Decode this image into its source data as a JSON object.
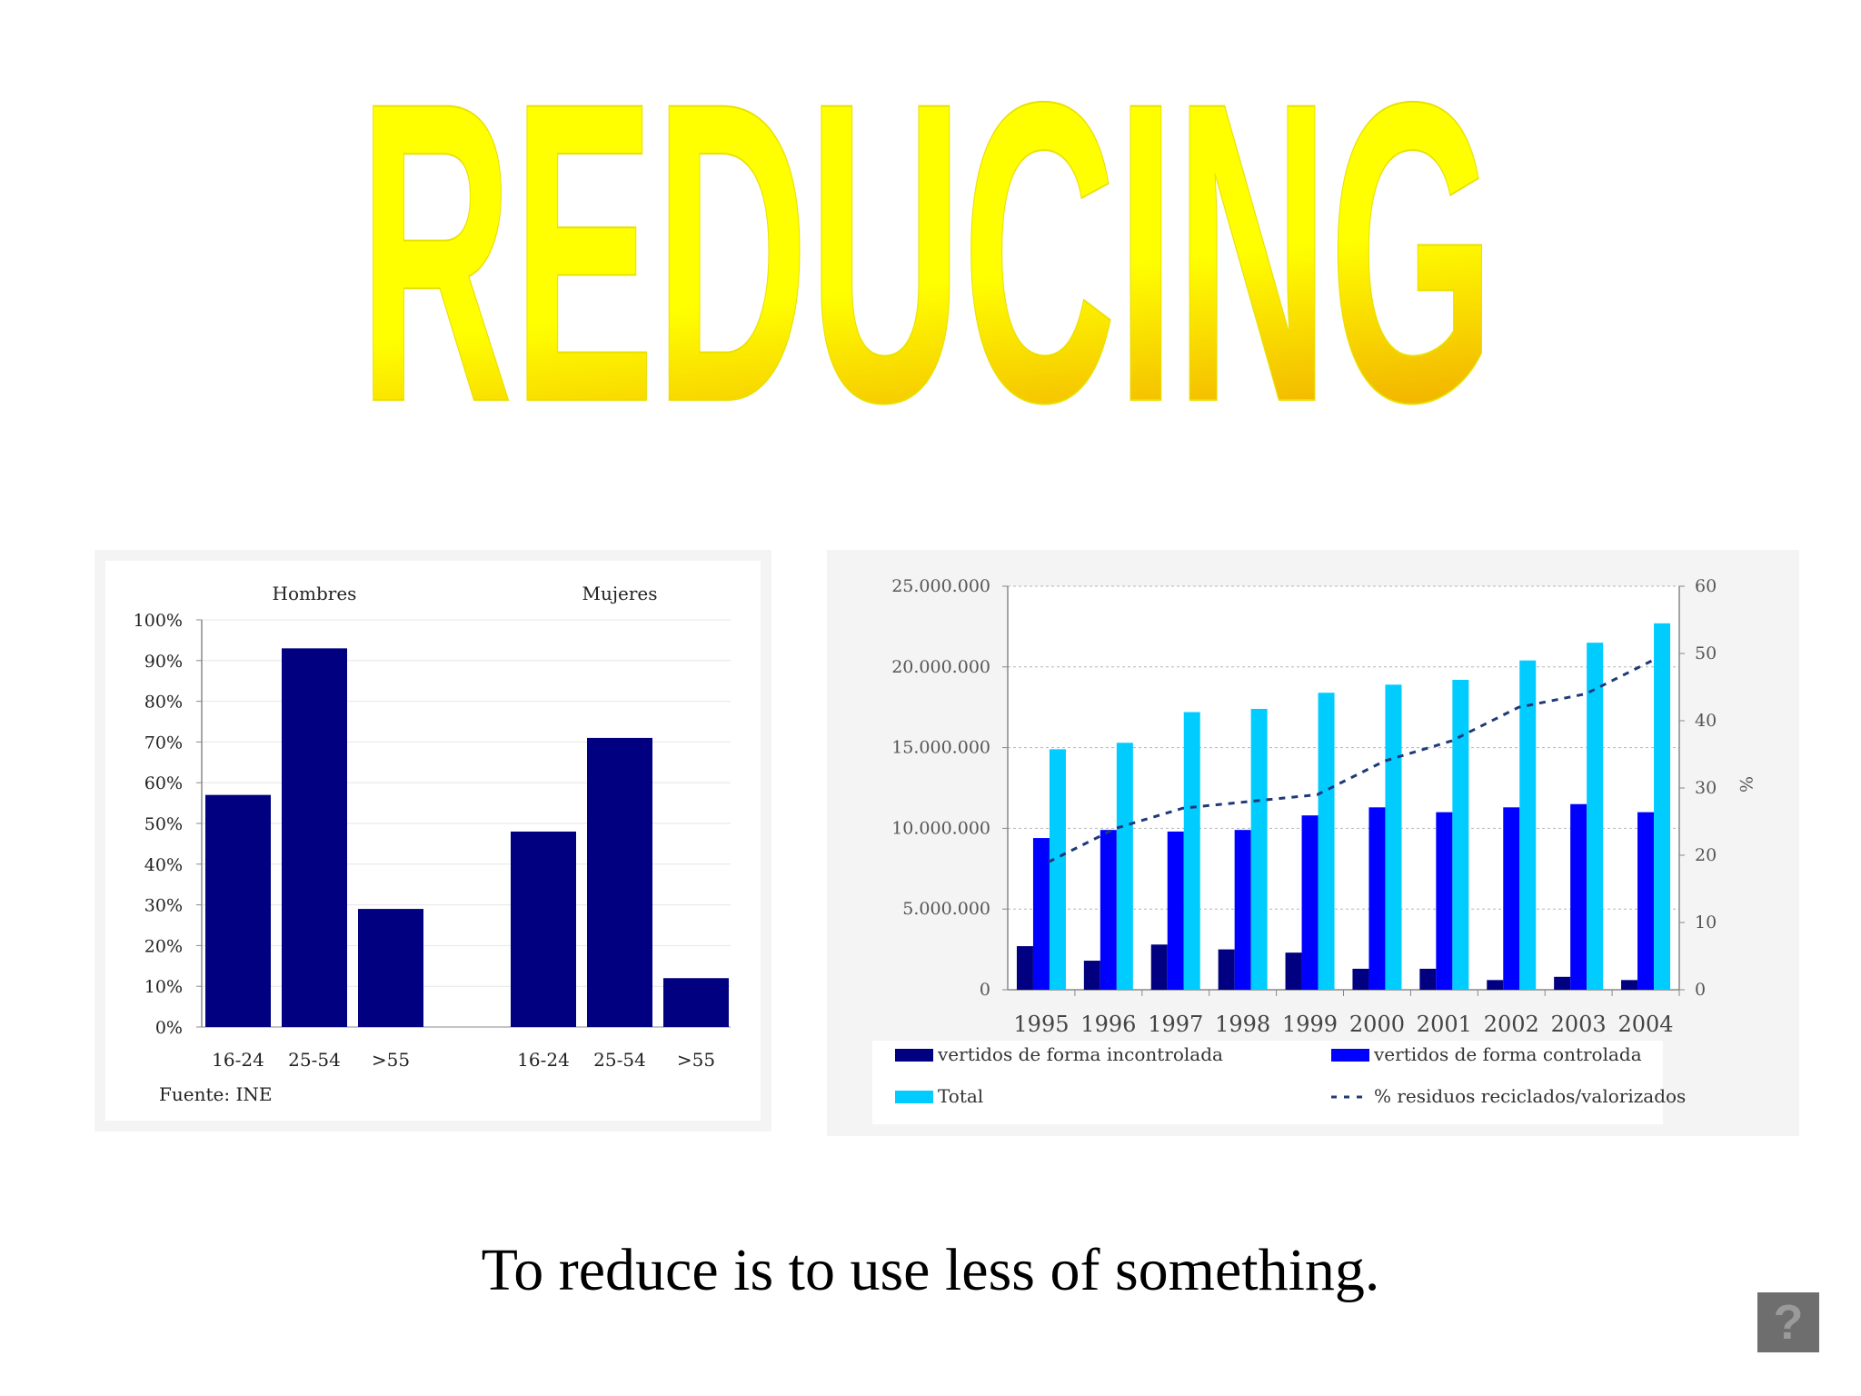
{
  "slide": {
    "title": "REDUCING",
    "caption": "To reduce is to use less of something.",
    "help_button": "?"
  },
  "colors": {
    "title_fill": "#ffff00",
    "title_shade": "#f2b300",
    "navy": "#000080",
    "blue": "#0000ff",
    "cyan": "#00ccff",
    "dashed_line": "#1f3a78"
  },
  "chart_data": [
    {
      "type": "bar",
      "groups": [
        {
          "name": "Hombres",
          "categories": [
            "16-24",
            "25-54",
            ">55"
          ],
          "values": [
            57,
            93,
            29
          ]
        },
        {
          "name": "Mujeres",
          "categories": [
            "16-24",
            "25-54",
            ">55"
          ],
          "values": [
            48,
            71,
            12
          ]
        }
      ],
      "yticks": [
        "0%",
        "10%",
        "20%",
        "30%",
        "40%",
        "50%",
        "60%",
        "70%",
        "80%",
        "90%",
        "100%"
      ],
      "ylim": [
        0,
        100
      ],
      "source": "Fuente: INE",
      "grid": true,
      "legend": "none"
    },
    {
      "type": "bar",
      "categories": [
        "1995",
        "1996",
        "1997",
        "1998",
        "1999",
        "2000",
        "2001",
        "2002",
        "2003",
        "2004"
      ],
      "series": [
        {
          "name": "vertidos de forma incontrolada",
          "values": [
            2700000,
            1800000,
            2800000,
            2500000,
            2300000,
            1300000,
            1300000,
            600000,
            800000,
            600000
          ]
        },
        {
          "name": "vertidos de forma controlada",
          "values": [
            9400000,
            9900000,
            9800000,
            9900000,
            10800000,
            11300000,
            11000000,
            11300000,
            11500000,
            11000000
          ]
        },
        {
          "name": "Total",
          "values": [
            14900000,
            15300000,
            17200000,
            17400000,
            18400000,
            18900000,
            19200000,
            20400000,
            21500000,
            22700000
          ]
        }
      ],
      "line_series": {
        "name": "% residuos reciclados/valorizados",
        "axis": "right",
        "values": [
          19,
          24,
          27,
          28,
          29,
          34,
          37,
          42,
          44,
          49
        ]
      },
      "yticks_left": [
        "0",
        "5.000.000",
        "10.000.000",
        "15.000.000",
        "20.000.000",
        "25.000.000"
      ],
      "ylim_left": [
        0,
        25000000
      ],
      "yticks_right": [
        "0",
        "10",
        "20",
        "30",
        "40",
        "50",
        "60"
      ],
      "ylim_right": [
        0,
        60
      ],
      "ylabel_right": "%",
      "grid": true,
      "legend": "bottom"
    }
  ]
}
